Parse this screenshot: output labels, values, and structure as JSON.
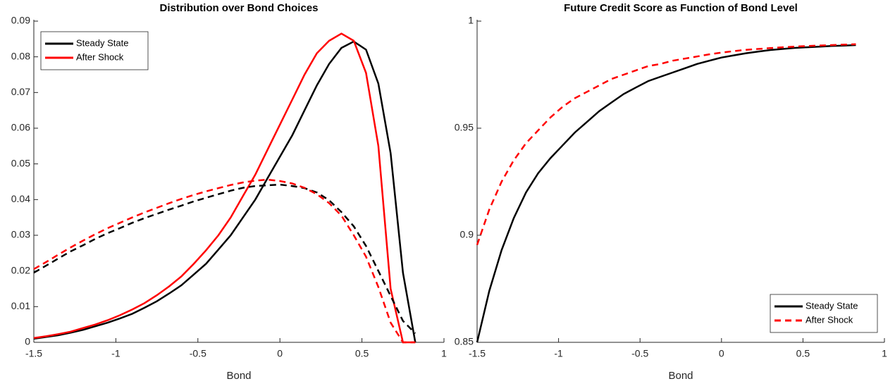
{
  "chart_data": [
    {
      "type": "line",
      "title": "Distribution over Bond Choices",
      "xlabel": "Bond",
      "x": [
        -1.5,
        -1.425,
        -1.35,
        -1.275,
        -1.2,
        -1.125,
        -1.05,
        -0.975,
        -0.9,
        -0.825,
        -0.75,
        -0.675,
        -0.6,
        -0.525,
        -0.45,
        -0.375,
        -0.3,
        -0.225,
        -0.15,
        -0.075,
        0,
        0.075,
        0.15,
        0.225,
        0.3,
        0.375,
        0.45,
        0.525,
        0.6,
        0.675,
        0.75,
        0.825
      ],
      "series": [
        {
          "name": "Steady State",
          "color": "#000000",
          "linestyle": "solid",
          "values": [
            0.001,
            0.0015,
            0.002,
            0.0027,
            0.0035,
            0.0045,
            0.0055,
            0.0067,
            0.008,
            0.0097,
            0.0115,
            0.0137,
            0.016,
            0.019,
            0.022,
            0.026,
            0.03,
            0.035,
            0.04,
            0.046,
            0.052,
            0.058,
            0.065,
            0.072,
            0.078,
            0.0825,
            0.0843,
            0.082,
            0.0725,
            0.053,
            0.0195,
            0
          ]
        },
        {
          "name": "After Shock",
          "color": "#ff0000",
          "linestyle": "solid",
          "values": [
            0.0012,
            0.0017,
            0.0023,
            0.003,
            0.004,
            0.005,
            0.0062,
            0.0076,
            0.0092,
            0.011,
            0.0132,
            0.0157,
            0.0185,
            0.022,
            0.0258,
            0.03,
            0.035,
            0.041,
            0.047,
            0.054,
            0.061,
            0.068,
            0.075,
            0.081,
            0.0845,
            0.0865,
            0.0845,
            0.0755,
            0.055,
            0.015,
            0,
            0
          ]
        },
        {
          "color": "#000000",
          "linestyle": "dashed",
          "values": [
            0.0195,
            0.0215,
            0.0235,
            0.0255,
            0.0272,
            0.029,
            0.0306,
            0.032,
            0.0335,
            0.0348,
            0.036,
            0.0372,
            0.0383,
            0.0395,
            0.0405,
            0.0415,
            0.0425,
            0.0433,
            0.0438,
            0.044,
            0.0442,
            0.0438,
            0.0432,
            0.042,
            0.0398,
            0.0365,
            0.0325,
            0.027,
            0.02,
            0.013,
            0.006,
            0.0025
          ]
        },
        {
          "color": "#ff0000",
          "linestyle": "dashed",
          "values": [
            0.0205,
            0.0225,
            0.0246,
            0.0266,
            0.0285,
            0.0303,
            0.032,
            0.0335,
            0.035,
            0.0364,
            0.0377,
            0.039,
            0.0402,
            0.0413,
            0.0423,
            0.0432,
            0.0441,
            0.0448,
            0.0453,
            0.0456,
            0.0452,
            0.0445,
            0.0433,
            0.0415,
            0.039,
            0.0355,
            0.03,
            0.024,
            0.0155,
            0.0055,
            0,
            0
          ]
        }
      ],
      "xlim": [
        -1.5,
        1
      ],
      "xticks": [
        -1.5,
        -1,
        -0.5,
        0,
        0.5,
        1
      ],
      "ylim": [
        0,
        0.09
      ],
      "yticks": [
        0,
        0.01,
        0.02,
        0.03,
        0.04,
        0.05,
        0.06,
        0.07,
        0.08,
        0.09
      ],
      "legend": "northwest"
    },
    {
      "type": "line",
      "title": "Future Credit Score as Function of Bond Level",
      "xlabel": "Bond",
      "x": [
        -1.5,
        -1.425,
        -1.35,
        -1.275,
        -1.2,
        -1.125,
        -1.05,
        -0.975,
        -0.9,
        -0.825,
        -0.75,
        -0.675,
        -0.6,
        -0.525,
        -0.45,
        -0.375,
        -0.3,
        -0.225,
        -0.15,
        -0.075,
        0,
        0.075,
        0.15,
        0.225,
        0.3,
        0.375,
        0.45,
        0.525,
        0.6,
        0.675,
        0.75,
        0.825
      ],
      "series": [
        {
          "name": "Steady State",
          "color": "#000000",
          "linestyle": "solid",
          "values": [
            0.85,
            0.874,
            0.893,
            0.908,
            0.92,
            0.929,
            0.936,
            0.942,
            0.948,
            0.953,
            0.958,
            0.962,
            0.966,
            0.969,
            0.972,
            0.974,
            0.976,
            0.978,
            0.98,
            0.9815,
            0.983,
            0.984,
            0.985,
            0.9858,
            0.9865,
            0.987,
            0.9875,
            0.9878,
            0.9881,
            0.9884,
            0.9886,
            0.9888
          ]
        },
        {
          "name": "After Shock",
          "color": "#ff0000",
          "linestyle": "dashed",
          "values": [
            0.8955,
            0.912,
            0.925,
            0.935,
            0.943,
            0.949,
            0.955,
            0.96,
            0.964,
            0.967,
            0.97,
            0.973,
            0.975,
            0.977,
            0.979,
            0.98,
            0.9815,
            0.9825,
            0.9835,
            0.9845,
            0.9853,
            0.986,
            0.9866,
            0.987,
            0.9874,
            0.9878,
            0.9881,
            0.9884,
            0.9886,
            0.9888,
            0.989,
            0.9892
          ]
        }
      ],
      "xlim": [
        -1.5,
        1
      ],
      "xticks": [
        -1.5,
        -1,
        -0.5,
        0,
        0.5,
        1
      ],
      "ylim": [
        0.85,
        1
      ],
      "yticks": [
        0.85,
        0.9,
        0.95,
        1
      ],
      "legend": "southeast"
    }
  ]
}
